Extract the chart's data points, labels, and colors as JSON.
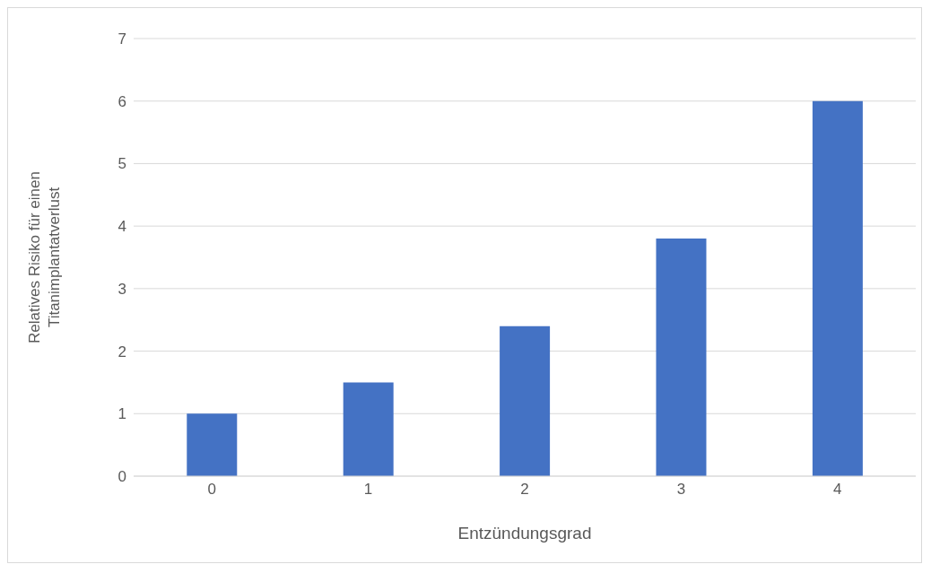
{
  "chart_data": {
    "type": "bar",
    "xlabel": "Entzündungsgrad",
    "ylabel": "Relatives Risiko für einen\nTitanimplantatverlust",
    "categories": [
      "0",
      "1",
      "2",
      "3",
      "4"
    ],
    "values": [
      1,
      1.5,
      2.4,
      3.8,
      6
    ],
    "color": "#4472c4",
    "ylim": [
      0,
      7
    ],
    "yticks": [
      0,
      1,
      2,
      3,
      4,
      5,
      6,
      7
    ],
    "grid": "y"
  }
}
